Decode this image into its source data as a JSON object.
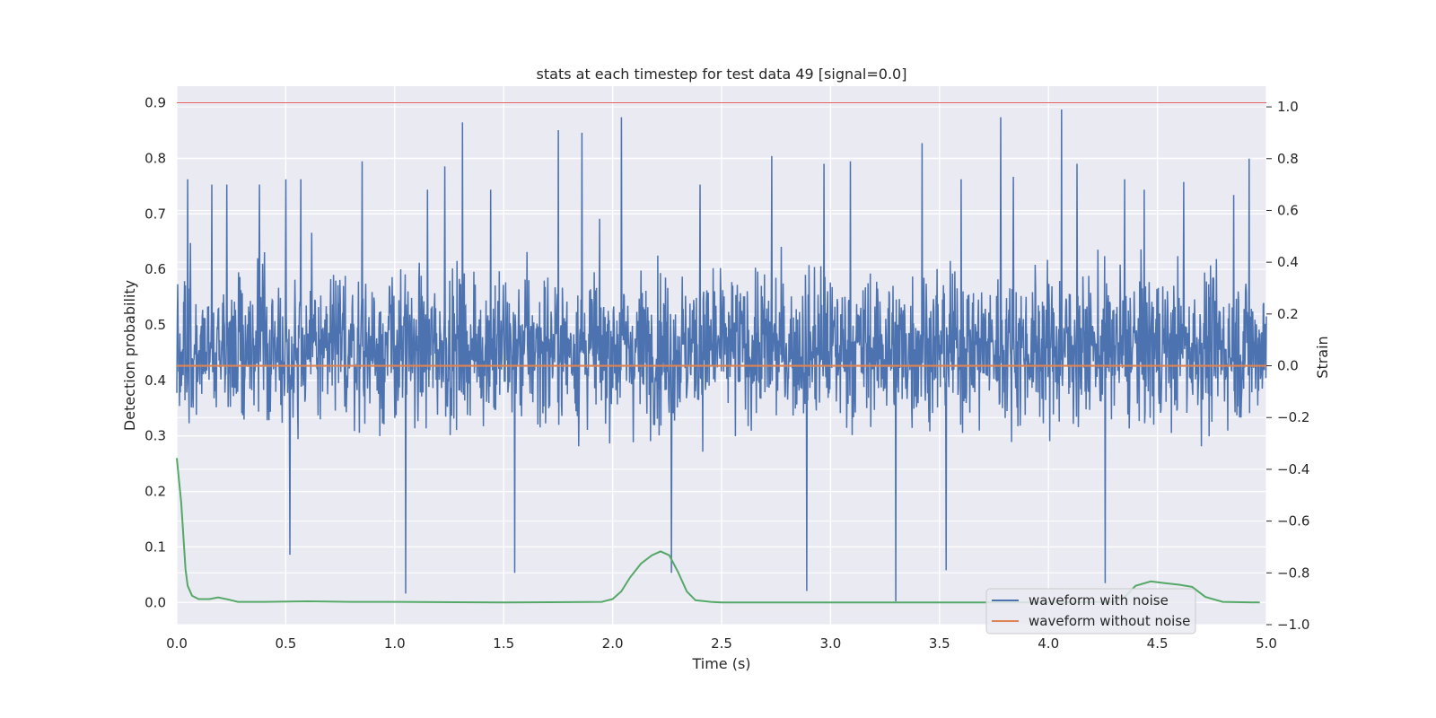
{
  "chart_data": {
    "type": "line",
    "title": "stats at each timestep for test data 49 [signal=0.0]",
    "xlabel": "Time (s)",
    "ylabel": "Detection probability",
    "y2label": "Strain",
    "xlim": [
      0.0,
      5.0
    ],
    "ylim": [
      -0.04,
      0.93
    ],
    "y2lim": [
      -1.0,
      1.08
    ],
    "xticks": [
      "0.0",
      "0.5",
      "1.0",
      "1.5",
      "2.0",
      "2.5",
      "3.0",
      "3.5",
      "4.0",
      "4.5",
      "5.0"
    ],
    "yticks": [
      "0.0",
      "0.1",
      "0.2",
      "0.3",
      "0.4",
      "0.5",
      "0.6",
      "0.7",
      "0.8",
      "0.9"
    ],
    "y2ticks": [
      "1.0",
      "0.8",
      "0.6",
      "0.4",
      "0.2",
      "0.0",
      "−0.2",
      "−0.4",
      "−0.6",
      "−0.8",
      "−1.0"
    ],
    "grid": true,
    "legend_position": "bottom-right",
    "colors": {
      "noisy": "#4c72b0",
      "clean": "#dd8452",
      "prob": "#55a868",
      "threshold": "#e06060",
      "plot_bg": "#eaeaf2"
    },
    "series": [
      {
        "name": "waveform with noise",
        "axis": "right",
        "description_values": "dense noise, mostly between -0.4 and 0.6 strain",
        "spikes": [
          [
            0.05,
            0.72
          ],
          [
            0.16,
            0.7
          ],
          [
            0.23,
            0.7
          ],
          [
            0.38,
            0.7
          ],
          [
            0.5,
            0.72
          ],
          [
            0.52,
            -0.73
          ],
          [
            0.57,
            0.72
          ],
          [
            0.85,
            0.79
          ],
          [
            1.05,
            -0.88
          ],
          [
            1.15,
            0.68
          ],
          [
            1.23,
            0.77
          ],
          [
            1.31,
            0.94
          ],
          [
            1.44,
            0.68
          ],
          [
            1.55,
            -0.8
          ],
          [
            1.75,
            0.91
          ],
          [
            1.86,
            0.9
          ],
          [
            2.04,
            0.96
          ],
          [
            2.27,
            -0.8
          ],
          [
            2.4,
            0.7
          ],
          [
            2.73,
            0.81
          ],
          [
            2.89,
            -0.87
          ],
          [
            2.97,
            0.78
          ],
          [
            3.09,
            0.79
          ],
          [
            3.3,
            -0.91
          ],
          [
            3.42,
            0.86
          ],
          [
            3.53,
            -0.79
          ],
          [
            3.6,
            0.72
          ],
          [
            3.78,
            0.96
          ],
          [
            3.84,
            0.73
          ],
          [
            4.06,
            0.99
          ],
          [
            4.13,
            0.78
          ],
          [
            4.26,
            -0.84
          ],
          [
            4.35,
            0.72
          ],
          [
            4.44,
            0.68
          ],
          [
            4.62,
            0.71
          ],
          [
            4.85,
            0.66
          ],
          [
            4.92,
            0.8
          ]
        ]
      },
      {
        "name": "waveform without noise",
        "axis": "right",
        "values": [
          [
            0.0,
            0.0
          ],
          [
            5.0,
            0.0
          ]
        ]
      },
      {
        "name": "",
        "axis": "left",
        "points": [
          [
            0.0,
            0.26
          ],
          [
            0.02,
            0.18
          ],
          [
            0.03,
            0.12
          ],
          [
            0.04,
            0.06
          ],
          [
            0.05,
            0.03
          ],
          [
            0.07,
            0.012
          ],
          [
            0.1,
            0.006
          ],
          [
            0.15,
            0.006
          ],
          [
            0.19,
            0.009
          ],
          [
            0.24,
            0.005
          ],
          [
            0.28,
            0.001
          ],
          [
            0.4,
            0.001
          ],
          [
            0.6,
            0.002
          ],
          [
            0.8,
            0.001
          ],
          [
            1.0,
            0.001
          ],
          [
            1.5,
            0.0
          ],
          [
            1.95,
            0.001
          ],
          [
            2.0,
            0.006
          ],
          [
            2.04,
            0.02
          ],
          [
            2.08,
            0.045
          ],
          [
            2.13,
            0.07
          ],
          [
            2.18,
            0.085
          ],
          [
            2.22,
            0.092
          ],
          [
            2.26,
            0.085
          ],
          [
            2.3,
            0.055
          ],
          [
            2.34,
            0.02
          ],
          [
            2.38,
            0.004
          ],
          [
            2.45,
            0.001
          ],
          [
            2.5,
            0.0
          ],
          [
            3.0,
            0.0
          ],
          [
            3.5,
            0.0
          ],
          [
            4.0,
            0.0
          ],
          [
            4.3,
            0.001
          ],
          [
            4.35,
            0.01
          ],
          [
            4.4,
            0.03
          ],
          [
            4.47,
            0.038
          ],
          [
            4.53,
            0.035
          ],
          [
            4.6,
            0.032
          ],
          [
            4.66,
            0.028
          ],
          [
            4.72,
            0.01
          ],
          [
            4.8,
            0.001
          ],
          [
            4.97,
            0.0
          ]
        ]
      }
    ],
    "threshold": 0.9,
    "legend": [
      "waveform with noise",
      "waveform without noise"
    ]
  }
}
